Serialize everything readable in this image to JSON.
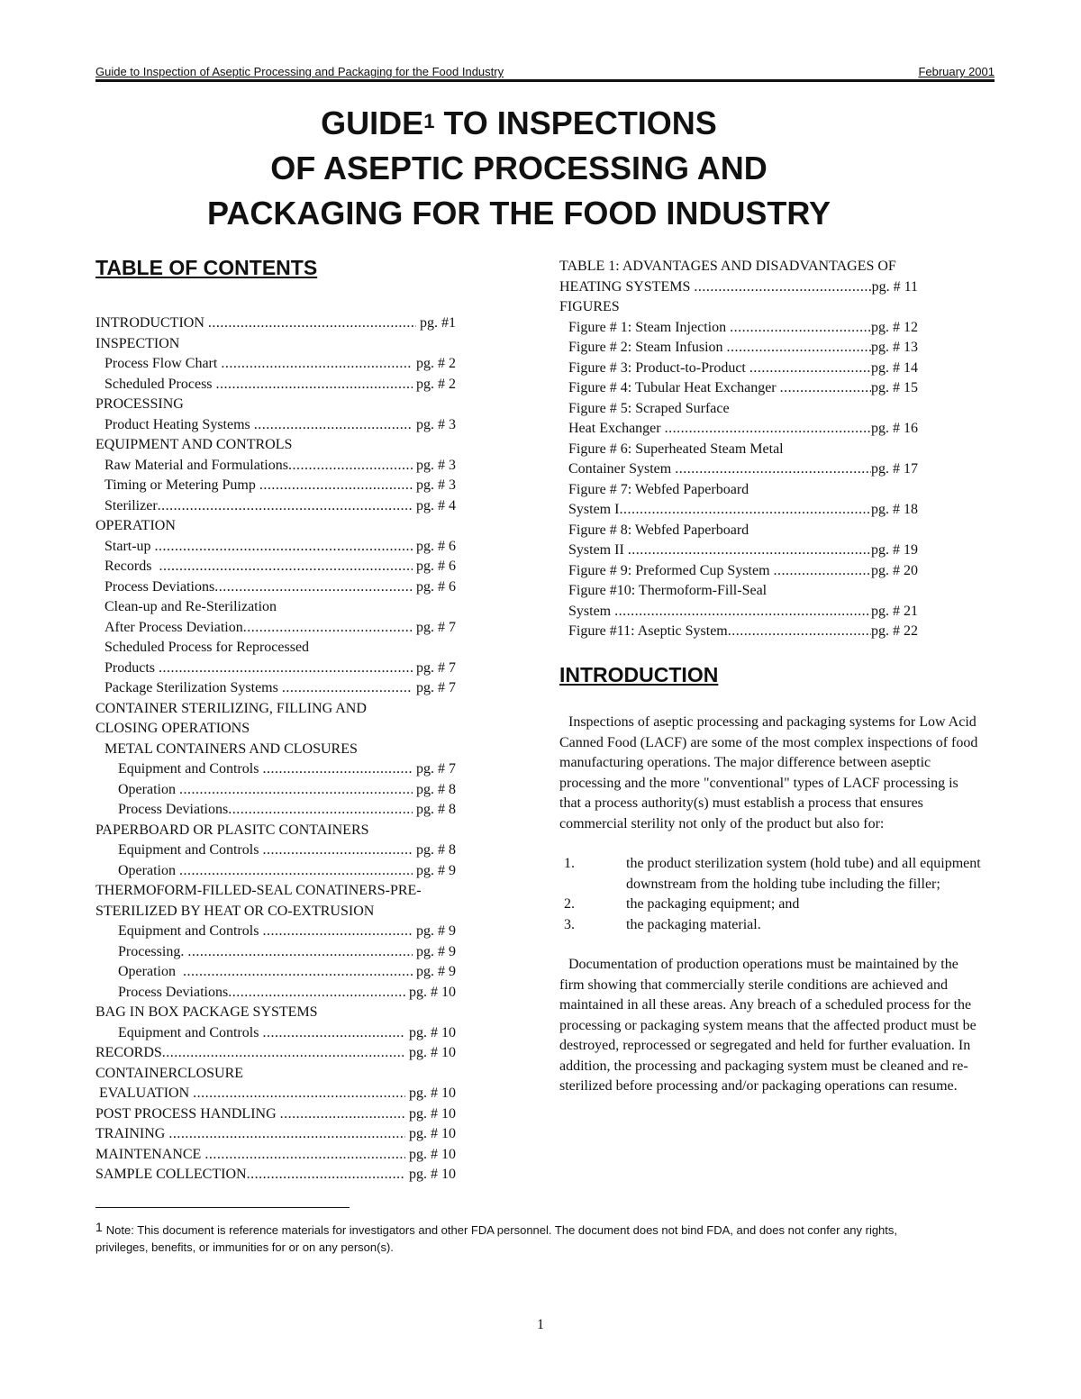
{
  "header": {
    "left": "Guide to Inspection of Aseptic Processing and Packaging for the Food Industry",
    "right": "February 2001"
  },
  "title": {
    "line1_a": "GUIDE",
    "footnote_mark": "1",
    "line1_b": " TO INSPECTIONS",
    "line2": "OF ASEPTIC PROCESSING AND",
    "line3": "PACKAGING FOR THE FOOD INDUSTRY"
  },
  "toc_heading": "TABLE OF CONTENTS",
  "toc_left": [
    {
      "label": "INTRODUCTION ",
      "page": " pg. #1",
      "level": 0
    },
    {
      "label": "INSPECTION",
      "page": "",
      "level": 0
    },
    {
      "label": "Process Flow Chart ",
      "page": " pg. # 2",
      "level": 1
    },
    {
      "label": "Scheduled Process ",
      "page": " pg. # 2",
      "level": 1
    },
    {
      "label": "PROCESSING",
      "page": "",
      "level": 0
    },
    {
      "label": "Product Heating Systems ",
      "page": " pg. # 3",
      "level": 1
    },
    {
      "label": "EQUIPMENT AND CONTROLS",
      "page": "",
      "level": 0
    },
    {
      "label": "Raw Material and Formulations",
      "page": " pg. # 3",
      "level": 1
    },
    {
      "label": "Timing or Metering Pump ",
      "page": " pg. # 3",
      "level": 1
    },
    {
      "label": "Sterilizer",
      "page": " pg. # 4",
      "level": 1
    },
    {
      "label": "OPERATION",
      "page": "",
      "level": 0
    },
    {
      "label": "Start-up ",
      "page": " pg. # 6",
      "level": 1
    },
    {
      "label": "Records  ",
      "page": " pg. # 6",
      "level": 1
    },
    {
      "label": "Process Deviations",
      "page": " pg. # 6",
      "level": 1
    },
    {
      "label": "Clean-up and Re-Sterilization",
      "page": "",
      "level": 1
    },
    {
      "label": "After Process Deviation",
      "page": " pg. # 7",
      "level": 1
    },
    {
      "label": "Scheduled Process for Reprocessed",
      "page": "",
      "level": 1
    },
    {
      "label": "Products ",
      "page": " pg. # 7",
      "level": 1
    },
    {
      "label": "Package Sterilization Systems ",
      "page": " pg. # 7",
      "level": 1
    },
    {
      "label": "CONTAINER STERILIZING, FILLING AND",
      "page": "",
      "level": 0
    },
    {
      "label": "CLOSING OPERATIONS",
      "page": "",
      "level": 0
    },
    {
      "label": "METAL CONTAINERS AND CLOSURES",
      "page": "",
      "level": 1
    },
    {
      "label": "Equipment and Controls ",
      "page": " pg. # 7",
      "level": 2
    },
    {
      "label": "Operation ",
      "page": " pg. # 8",
      "level": 2
    },
    {
      "label": "Process Deviations",
      "page": " pg. # 8",
      "level": 2
    },
    {
      "label": "PAPERBOARD OR PLASITC CONTAINERS",
      "page": "",
      "level": 0
    },
    {
      "label": "Equipment and Controls ",
      "page": " pg. # 8",
      "level": 2
    },
    {
      "label": "Operation ",
      "page": " pg. # 9",
      "level": 2
    },
    {
      "label": "THERMOFORM-FILLED-SEAL CONATINERS-PRE-",
      "page": "",
      "level": 0
    },
    {
      "label": "STERILIZED BY HEAT OR CO-EXTRUSION",
      "page": "",
      "level": 0
    },
    {
      "label": "Equipment and Controls ",
      "page": " pg. # 9",
      "level": 2
    },
    {
      "label": "Processing. ",
      "page": " pg. # 9",
      "level": 2
    },
    {
      "label": "Operation  ",
      "page": " pg. # 9",
      "level": 2
    },
    {
      "label": "Process Deviations",
      "page": " pg. # 10",
      "level": 2
    },
    {
      "label": "BAG IN BOX PACKAGE SYSTEMS",
      "page": "",
      "level": 0
    },
    {
      "label": "Equipment and Controls ",
      "page": " pg. # 10",
      "level": 2
    },
    {
      "label": "RECORDS",
      "page": " pg. # 10",
      "level": 0
    },
    {
      "label": "CONTAINERCLOSURE",
      "page": "",
      "level": 0
    },
    {
      "label": " EVALUATION ",
      "page": " pg. # 10",
      "level": 0
    },
    {
      "label": "POST PROCESS HANDLING ",
      "page": " pg. # 10",
      "level": 0
    },
    {
      "label": "TRAINING ",
      "page": " pg. # 10",
      "level": 0
    },
    {
      "label": "MAINTENANCE ",
      "page": " pg. # 10",
      "level": 0
    },
    {
      "label": "SAMPLE COLLECTION",
      "page": " pg. # 10",
      "level": 0
    }
  ],
  "toc_right": [
    {
      "label": "TABLE 1: ADVANTAGES AND DISADVANTAGES OF",
      "page": "",
      "level": 0
    },
    {
      "label": "HEATING SYSTEMS ",
      "page": "pg. # 11",
      "level": 0
    },
    {
      "label": "FIGURES",
      "page": "",
      "level": 0
    },
    {
      "label": "Figure # 1: Steam Injection ",
      "page": "pg. # 12",
      "level": 1
    },
    {
      "label": "Figure # 2: Steam Infusion ",
      "page": "pg. # 13",
      "level": 1
    },
    {
      "label": "Figure # 3: Product-to-Product ",
      "page": "pg. # 14",
      "level": 1
    },
    {
      "label": "Figure # 4: Tubular Heat Exchanger ",
      "page": "pg. # 15",
      "level": 1
    },
    {
      "label": "Figure # 5: Scraped Surface",
      "page": "",
      "level": 1
    },
    {
      "label": "Heat Exchanger ",
      "page": "pg. # 16",
      "level": 1
    },
    {
      "label": "Figure # 6: Superheated Steam Metal",
      "page": "",
      "level": 1
    },
    {
      "label": "Container System ",
      "page": "pg. # 17",
      "level": 1
    },
    {
      "label": "Figure # 7: Webfed Paperboard",
      "page": "",
      "level": 1
    },
    {
      "label": "System I",
      "page": "pg. # 18",
      "level": 1
    },
    {
      "label": "Figure # 8: Webfed Paperboard",
      "page": "",
      "level": 1
    },
    {
      "label": "System II ",
      "page": "pg. # 19",
      "level": 1
    },
    {
      "label": "Figure # 9: Preformed Cup System ",
      "page": "pg. # 20",
      "level": 1
    },
    {
      "label": "Figure #10: Thermoform-Fill-Seal",
      "page": "",
      "level": 1
    },
    {
      "label": "System ",
      "page": "pg. # 21",
      "level": 1
    },
    {
      "label": "Figure #11: Aseptic System",
      "page": "pg. # 22",
      "level": 1
    }
  ],
  "introduction": {
    "heading": "INTRODUCTION",
    "para1": "Inspections of aseptic processing and packaging systems for Low Acid Canned Food (LACF) are some of the most complex inspections of food manufacturing operations. The major difference between aseptic processing and the more \"conventional\" types of LACF processing is that a process authority(s) must establish a process that ensures commercial sterility not only of the product but also for:",
    "list": [
      {
        "num": "1.",
        "text": "the product sterilization system (hold tube) and all equipment downstream from the holding tube including the filler;"
      },
      {
        "num": "2.",
        "text": "the packaging equipment; and"
      },
      {
        "num": "3.",
        "text": "the packaging material."
      }
    ],
    "para2": "Documentation of production operations must be maintained by the firm showing that commercially sterile conditions are achieved and maintained in all these areas. Any breach of a scheduled process for the processing or packaging system means that the affected product must be destroyed, reprocessed or segregated and held for further evaluation.  In addition, the processing and packaging system must be cleaned and re-sterilized  before processing and/or packaging operations can resume."
  },
  "footnote": {
    "mark": "1",
    "text": "Note: This document is reference materials for investigators and other FDA personnel. The document does not bind FDA, and does not confer any rights, privileges, benefits, or immunities for or on any person(s)."
  },
  "page_number": "1"
}
